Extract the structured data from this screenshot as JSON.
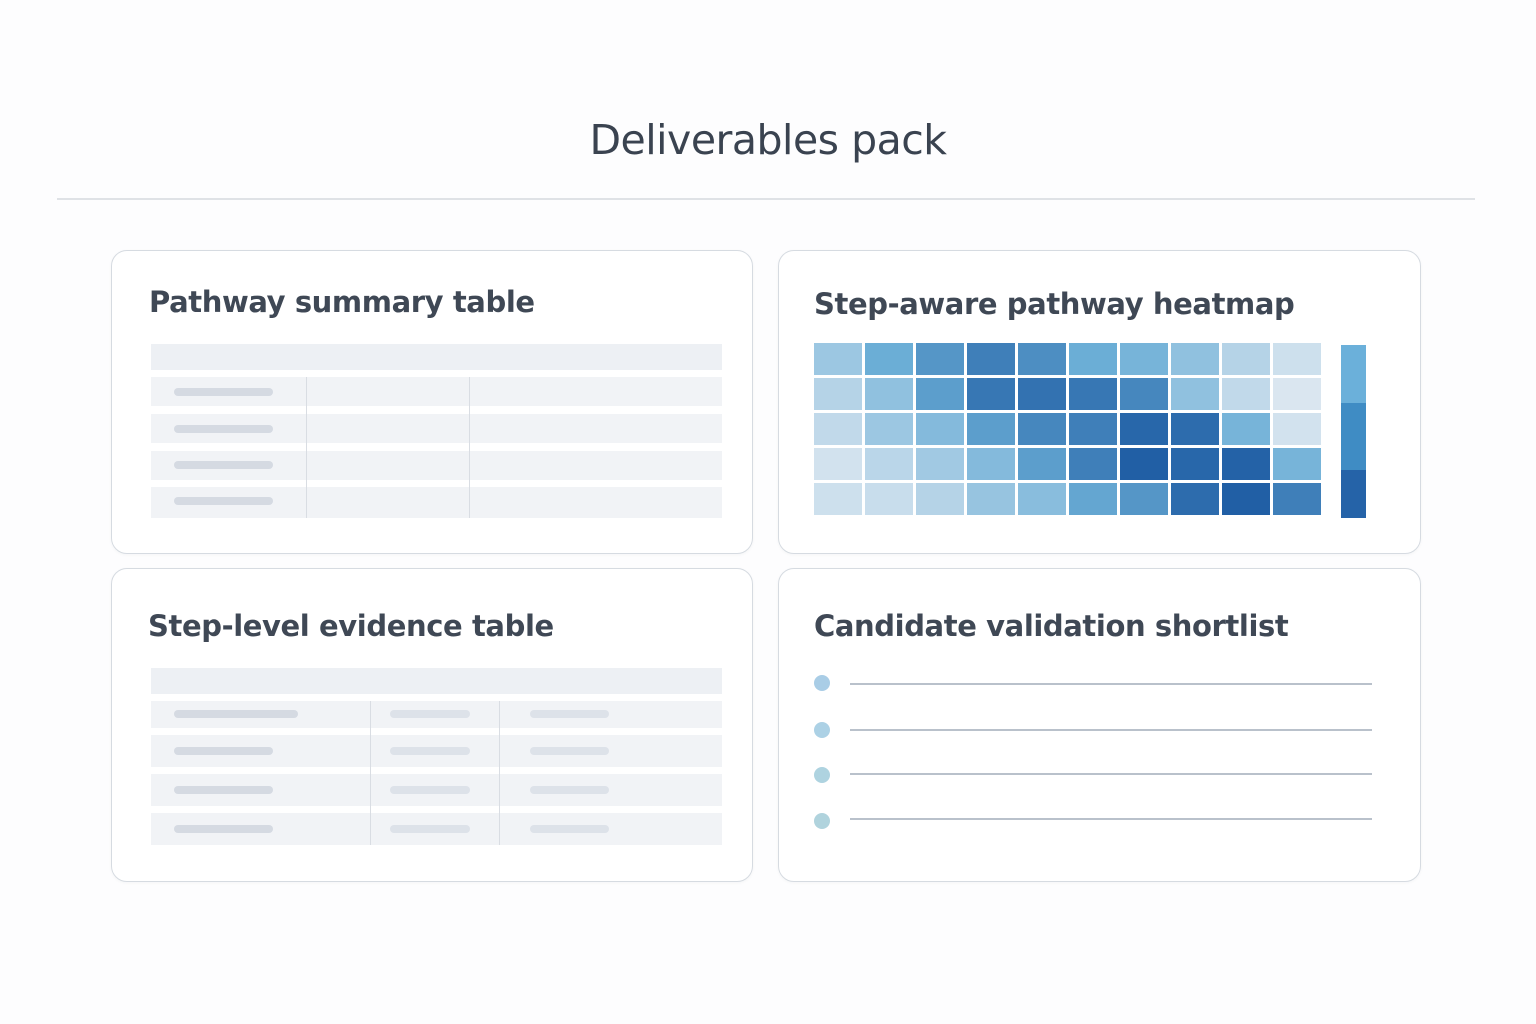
{
  "page": {
    "title": "Deliverables pack"
  },
  "cards": {
    "summary": {
      "title": "Pathway summary table",
      "columns": 3,
      "rows": 4
    },
    "heatmap": {
      "title": "Step-aware pathway heatmap"
    },
    "evidence": {
      "title": "Step-level evidence table",
      "columns": 3,
      "rows": 4
    },
    "shortlist": {
      "title": "Candidate validation shortlist",
      "items": 4,
      "dot_colors": [
        "#a9cde6",
        "#acd1e5",
        "#aed3e0",
        "#b0d3dd"
      ]
    }
  },
  "colors": {
    "title_text": "#3a4350",
    "card_border": "#d6dbe1",
    "table_header": "#edf0f4",
    "table_row": "#f1f3f6",
    "placeholder_bar": "#d5dae2",
    "colorbar": [
      "#6bb0da",
      "#3f8cc4",
      "#2563a8"
    ]
  },
  "chart_data": {
    "type": "heatmap",
    "title": "Step-aware pathway heatmap",
    "xlabel": "",
    "ylabel": "",
    "rows": 5,
    "cols": 10,
    "scale": [
      0,
      1
    ],
    "values": [
      [
        0.3,
        0.5,
        0.65,
        0.8,
        0.7,
        0.5,
        0.45,
        0.35,
        0.2,
        0.1
      ],
      [
        0.2,
        0.35,
        0.6,
        0.85,
        0.88,
        0.85,
        0.75,
        0.35,
        0.15,
        0.05
      ],
      [
        0.15,
        0.3,
        0.4,
        0.6,
        0.75,
        0.8,
        0.95,
        0.92,
        0.45,
        0.08
      ],
      [
        0.08,
        0.18,
        0.28,
        0.4,
        0.6,
        0.8,
        1.0,
        0.95,
        0.98,
        0.45
      ],
      [
        0.1,
        0.12,
        0.2,
        0.32,
        0.38,
        0.55,
        0.65,
        0.92,
        1.0,
        0.8
      ]
    ],
    "colorbar": {
      "segments": 3,
      "colors": [
        "#6bb0da",
        "#3f8cc4",
        "#2563a8"
      ]
    }
  }
}
